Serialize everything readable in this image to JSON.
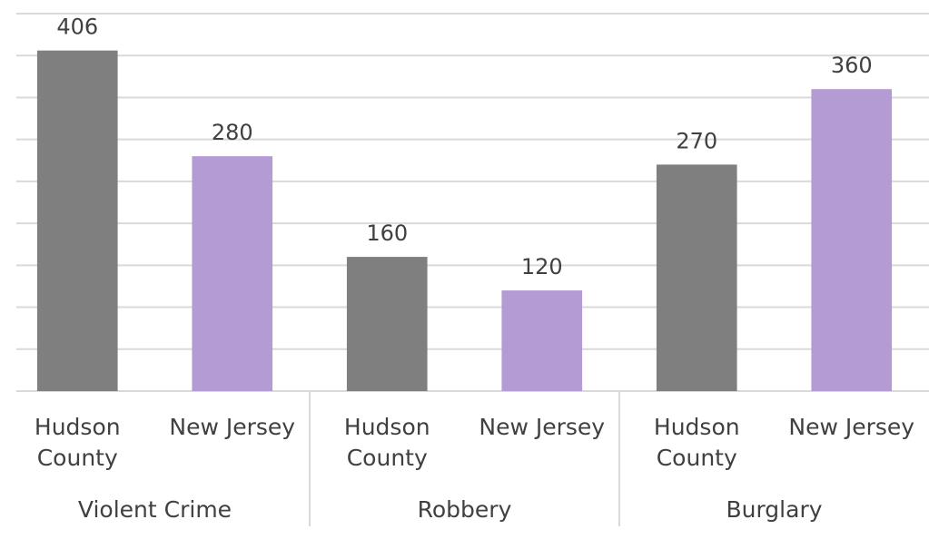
{
  "chart_data": {
    "type": "bar",
    "categories": [
      "Violent Crime",
      "Robbery",
      "Burglary"
    ],
    "series": [
      {
        "name": "Hudson County",
        "color": "#7f7f7f",
        "values": [
          406,
          160,
          270
        ]
      },
      {
        "name": "New Jersey",
        "color": "#b59bd3",
        "values": [
          280,
          120,
          360
        ]
      }
    ],
    "ylim": [
      0,
      450
    ],
    "yticks": [
      0,
      50,
      100,
      150,
      200,
      250,
      300,
      350,
      400,
      450
    ],
    "grid": true
  }
}
